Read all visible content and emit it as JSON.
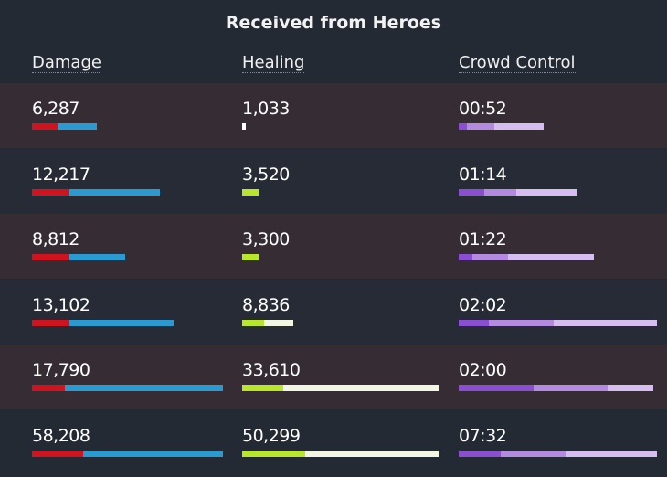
{
  "title": "Received from Heroes",
  "headers": {
    "damage": "Damage",
    "healing": "Healing",
    "cc": "Crowd Control"
  },
  "colors": {
    "damage": [
      "#d0141f",
      "#2a9ad0"
    ],
    "healing": [
      "#b8e62a",
      "#f2f7e4"
    ],
    "healing_small": "#ffffff",
    "cc": [
      "#8a4fd0",
      "#b48ae0",
      "#d6bdf0"
    ],
    "row_a": "#352d33",
    "row_b": "#262b35"
  },
  "rows": [
    {
      "damage": "6,287",
      "damage_bar_pct": [
        14,
        20
      ],
      "healing": "1,033",
      "healing_bar_pct": [
        0,
        2
      ],
      "cc": "00:52",
      "cc_bar_pct": [
        4,
        14,
        25
      ]
    },
    {
      "damage": "12,217",
      "damage_bar_pct": [
        19,
        48
      ],
      "healing": "3,520",
      "healing_bar_pct": [
        9,
        0
      ],
      "cc": "01:14",
      "cc_bar_pct": [
        13,
        16,
        31
      ]
    },
    {
      "damage": "8,812",
      "damage_bar_pct": [
        19,
        30
      ],
      "healing": "3,300",
      "healing_bar_pct": [
        9,
        0
      ],
      "cc": "01:22",
      "cc_bar_pct": [
        7,
        18,
        43
      ]
    },
    {
      "damage": "13,102",
      "damage_bar_pct": [
        19,
        55
      ],
      "healing": "8,836",
      "healing_bar_pct": [
        11,
        15
      ],
      "cc": "02:02",
      "cc_bar_pct": [
        15,
        33,
        52
      ]
    },
    {
      "damage": "17,790",
      "damage_bar_pct": [
        17,
        83
      ],
      "healing": "33,610",
      "healing_bar_pct": [
        21,
        79
      ],
      "cc": "02:00",
      "cc_bar_pct": [
        38,
        37,
        23
      ]
    },
    {
      "damage": "58,208",
      "damage_bar_pct": [
        27,
        73
      ],
      "healing": "50,299",
      "healing_bar_pct": [
        32,
        68
      ],
      "cc": "07:32",
      "cc_bar_pct": [
        21,
        33,
        46
      ]
    }
  ]
}
